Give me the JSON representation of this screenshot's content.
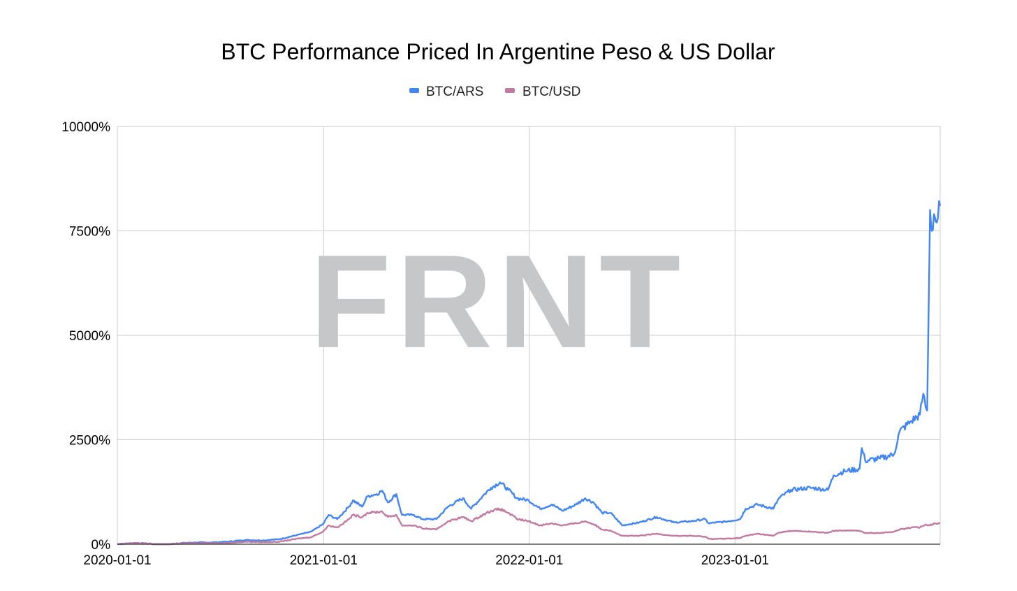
{
  "chart_data": {
    "type": "line",
    "title": "BTC Performance Priced In Argentine Peso & US Dollar",
    "watermark": "FRNT",
    "xlabel": "",
    "ylabel": "",
    "x_ticks": [
      "2020-01-01",
      "2021-01-01",
      "2022-01-01",
      "2023-01-01"
    ],
    "y_ticks": [
      "0%",
      "2500%",
      "5000%",
      "7500%",
      "10000%"
    ],
    "ylim": [
      0,
      10000
    ],
    "xlim": [
      "2020-01-01",
      "2023-12-31"
    ],
    "grid": true,
    "legend_position": "top-center",
    "series": [
      {
        "name": "BTC/ARS",
        "color": "#4285f4",
        "points": [
          [
            "2020-01-01",
            0
          ],
          [
            "2020-02-01",
            30
          ],
          [
            "2020-03-01",
            10
          ],
          [
            "2020-03-15",
            -30
          ],
          [
            "2020-04-15",
            20
          ],
          [
            "2020-05-15",
            40
          ],
          [
            "2020-06-15",
            40
          ],
          [
            "2020-07-15",
            60
          ],
          [
            "2020-08-15",
            100
          ],
          [
            "2020-09-15",
            90
          ],
          [
            "2020-10-15",
            120
          ],
          [
            "2020-11-15",
            220
          ],
          [
            "2020-12-10",
            300
          ],
          [
            "2020-12-31",
            480
          ],
          [
            "2021-01-10",
            700
          ],
          [
            "2021-01-25",
            600
          ],
          [
            "2021-02-15",
            900
          ],
          [
            "2021-02-22",
            1050
          ],
          [
            "2021-03-10",
            900
          ],
          [
            "2021-03-20",
            1150
          ],
          [
            "2021-04-05",
            1200
          ],
          [
            "2021-04-15",
            1280
          ],
          [
            "2021-04-25",
            1000
          ],
          [
            "2021-05-10",
            1200
          ],
          [
            "2021-05-20",
            700
          ],
          [
            "2021-06-10",
            700
          ],
          [
            "2021-06-25",
            600
          ],
          [
            "2021-07-20",
            600
          ],
          [
            "2021-08-10",
            900
          ],
          [
            "2021-09-05",
            1100
          ],
          [
            "2021-09-20",
            850
          ],
          [
            "2021-10-10",
            1150
          ],
          [
            "2021-10-25",
            1350
          ],
          [
            "2021-11-10",
            1480
          ],
          [
            "2021-11-25",
            1300
          ],
          [
            "2021-12-10",
            1100
          ],
          [
            "2021-12-31",
            1050
          ],
          [
            "2022-01-20",
            850
          ],
          [
            "2022-02-10",
            950
          ],
          [
            "2022-03-01",
            800
          ],
          [
            "2022-03-25",
            950
          ],
          [
            "2022-04-10",
            1100
          ],
          [
            "2022-04-25",
            1000
          ],
          [
            "2022-05-10",
            750
          ],
          [
            "2022-05-25",
            750
          ],
          [
            "2022-06-15",
            450
          ],
          [
            "2022-07-15",
            520
          ],
          [
            "2022-08-15",
            650
          ],
          [
            "2022-09-15",
            520
          ],
          [
            "2022-10-15",
            550
          ],
          [
            "2022-11-09",
            600
          ],
          [
            "2022-11-15",
            500
          ],
          [
            "2022-12-15",
            540
          ],
          [
            "2023-01-10",
            600
          ],
          [
            "2023-01-20",
            850
          ],
          [
            "2023-02-10",
            950
          ],
          [
            "2023-03-10",
            850
          ],
          [
            "2023-03-20",
            1100
          ],
          [
            "2023-04-10",
            1300
          ],
          [
            "2023-05-15",
            1350
          ],
          [
            "2023-06-15",
            1300
          ],
          [
            "2023-06-25",
            1650
          ],
          [
            "2023-07-15",
            1750
          ],
          [
            "2023-08-10",
            1800
          ],
          [
            "2023-08-14",
            2300
          ],
          [
            "2023-08-20",
            2000
          ],
          [
            "2023-09-15",
            2050
          ],
          [
            "2023-10-10",
            2150
          ],
          [
            "2023-10-20",
            2700
          ],
          [
            "2023-11-10",
            2950
          ],
          [
            "2023-11-25",
            3100
          ],
          [
            "2023-12-01",
            3600
          ],
          [
            "2023-12-05",
            3300
          ],
          [
            "2023-12-08",
            3200
          ],
          [
            "2023-12-13",
            8000
          ],
          [
            "2023-12-16",
            7500
          ],
          [
            "2023-12-20",
            7900
          ],
          [
            "2023-12-25",
            7700
          ],
          [
            "2023-12-31",
            8100
          ]
        ]
      },
      {
        "name": "BTC/USD",
        "color": "#c27ba0",
        "points": [
          [
            "2020-01-01",
            0
          ],
          [
            "2020-02-01",
            25
          ],
          [
            "2020-03-01",
            10
          ],
          [
            "2020-03-15",
            -30
          ],
          [
            "2020-04-15",
            10
          ],
          [
            "2020-05-15",
            25
          ],
          [
            "2020-06-15",
            20
          ],
          [
            "2020-07-15",
            30
          ],
          [
            "2020-08-15",
            60
          ],
          [
            "2020-09-15",
            50
          ],
          [
            "2020-10-15",
            60
          ],
          [
            "2020-11-15",
            130
          ],
          [
            "2020-12-10",
            170
          ],
          [
            "2020-12-31",
            300
          ],
          [
            "2021-01-10",
            450
          ],
          [
            "2021-01-25",
            400
          ],
          [
            "2021-02-15",
            600
          ],
          [
            "2021-02-22",
            700
          ],
          [
            "2021-03-10",
            650
          ],
          [
            "2021-03-20",
            750
          ],
          [
            "2021-04-15",
            780
          ],
          [
            "2021-04-25",
            650
          ],
          [
            "2021-05-10",
            700
          ],
          [
            "2021-05-20",
            450
          ],
          [
            "2021-06-10",
            450
          ],
          [
            "2021-06-25",
            380
          ],
          [
            "2021-07-20",
            350
          ],
          [
            "2021-08-10",
            550
          ],
          [
            "2021-09-05",
            650
          ],
          [
            "2021-09-20",
            550
          ],
          [
            "2021-10-10",
            700
          ],
          [
            "2021-10-25",
            800
          ],
          [
            "2021-11-10",
            840
          ],
          [
            "2021-11-25",
            750
          ],
          [
            "2021-12-10",
            600
          ],
          [
            "2021-12-31",
            550
          ],
          [
            "2022-01-20",
            450
          ],
          [
            "2022-02-10",
            500
          ],
          [
            "2022-03-01",
            450
          ],
          [
            "2022-03-25",
            500
          ],
          [
            "2022-04-10",
            550
          ],
          [
            "2022-04-25",
            480
          ],
          [
            "2022-05-10",
            350
          ],
          [
            "2022-05-25",
            330
          ],
          [
            "2022-06-15",
            200
          ],
          [
            "2022-07-15",
            200
          ],
          [
            "2022-08-15",
            250
          ],
          [
            "2022-09-15",
            200
          ],
          [
            "2022-10-15",
            200
          ],
          [
            "2022-11-09",
            180
          ],
          [
            "2022-11-15",
            130
          ],
          [
            "2022-12-15",
            130
          ],
          [
            "2023-01-10",
            150
          ],
          [
            "2023-01-20",
            200
          ],
          [
            "2023-02-10",
            250
          ],
          [
            "2023-03-10",
            200
          ],
          [
            "2023-03-20",
            280
          ],
          [
            "2023-04-10",
            320
          ],
          [
            "2023-05-15",
            300
          ],
          [
            "2023-06-15",
            270
          ],
          [
            "2023-06-25",
            320
          ],
          [
            "2023-07-15",
            330
          ],
          [
            "2023-08-10",
            320
          ],
          [
            "2023-08-20",
            270
          ],
          [
            "2023-09-15",
            270
          ],
          [
            "2023-10-10",
            300
          ],
          [
            "2023-10-20",
            350
          ],
          [
            "2023-11-10",
            400
          ],
          [
            "2023-11-25",
            400
          ],
          [
            "2023-12-05",
            470
          ],
          [
            "2023-12-13",
            450
          ],
          [
            "2023-12-20",
            500
          ],
          [
            "2023-12-31",
            500
          ]
        ]
      }
    ]
  }
}
